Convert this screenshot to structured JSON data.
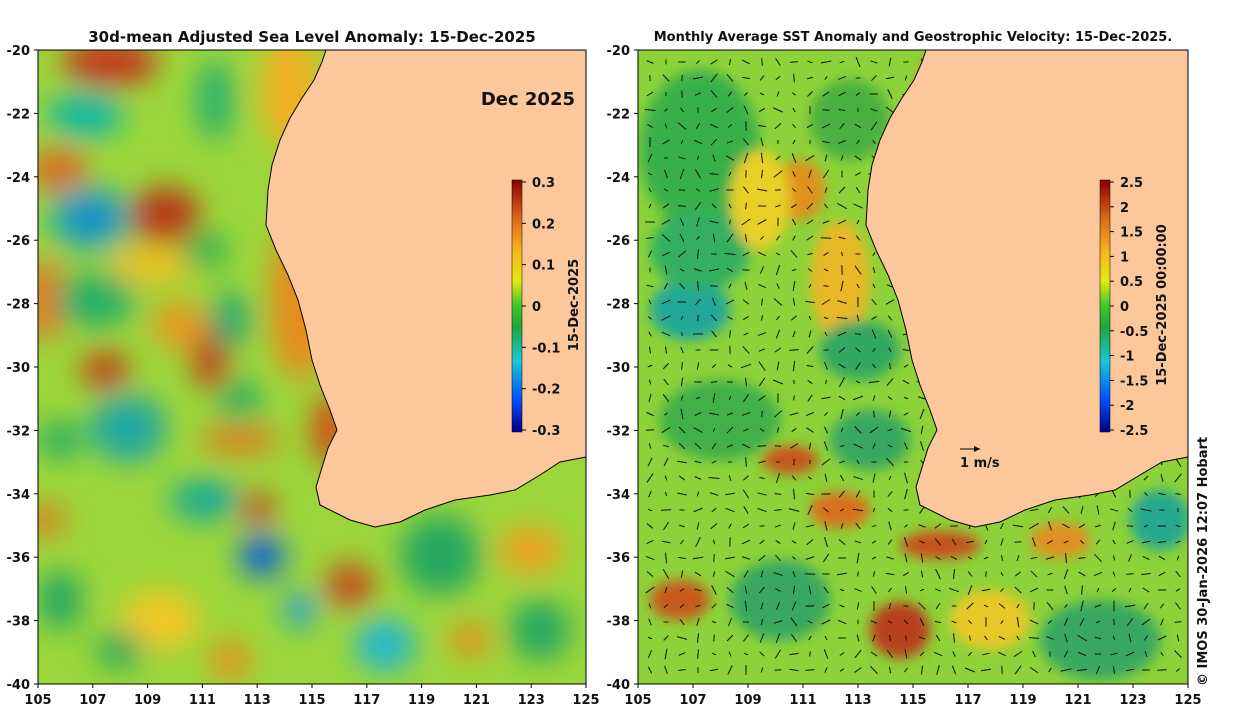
{
  "left_panel": {
    "title": "30d-mean Adjusted Sea Level Anomaly: 15-Dec-2025",
    "month_label": "Dec 2025",
    "colorbar": {
      "label": "15-Dec-2025",
      "ticks": [
        "0.3",
        "0.2",
        "0.1",
        "0",
        "-0.1",
        "-0.2",
        "-0.3"
      ],
      "range": [
        -0.3,
        0.3
      ]
    }
  },
  "right_panel": {
    "title": "Monthly Average SST Anomaly  and Geostrophic Velocity: 15-Dec-2025.",
    "colorbar": {
      "label": "15-Dec-2025 00:00:00",
      "ticks": [
        "2.5",
        "2",
        "1.5",
        "1",
        "0.5",
        "0",
        "-0.5",
        "-1",
        "-1.5",
        "-2",
        "-2.5"
      ],
      "range": [
        -2.5,
        2.5
      ]
    },
    "velocity_scale_label": "1 m/s"
  },
  "axes": {
    "x_ticks": [
      "105",
      "107",
      "109",
      "111",
      "113",
      "115",
      "117",
      "119",
      "121",
      "123",
      "125"
    ],
    "y_ticks": [
      "-20",
      "-22",
      "-24",
      "-26",
      "-28",
      "-30",
      "-32",
      "-34",
      "-36",
      "-38",
      "-40"
    ],
    "lon_range": [
      105,
      125
    ],
    "lat_range": [
      -40,
      -20
    ]
  },
  "colors": {
    "land": "#fcc89b",
    "coast_line": "#000000"
  },
  "credit": "© IMOS 30-Jan-2026 12:07 Hobart"
}
